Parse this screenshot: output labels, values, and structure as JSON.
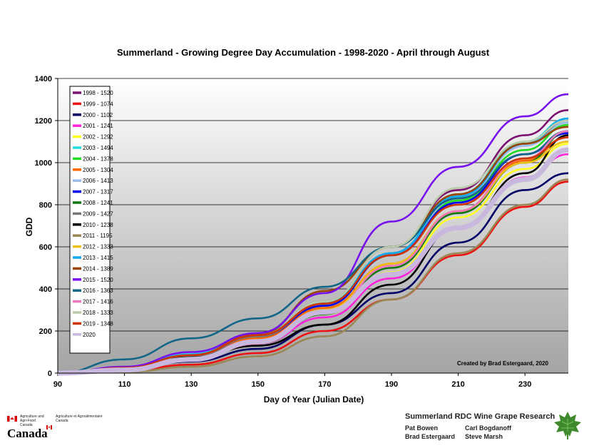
{
  "chart_data": {
    "type": "line",
    "title": "Summerland - Growing Degree Day Accumulation - 1998-2020 - April through August",
    "xlabel": "Day of Year (Julian Date)",
    "ylabel": "GDD",
    "xlim": [
      90,
      243
    ],
    "ylim": [
      0,
      1400
    ],
    "xticks": [
      90,
      110,
      130,
      150,
      170,
      190,
      210,
      230
    ],
    "yticks": [
      0,
      200,
      400,
      600,
      800,
      1000,
      1200,
      1400
    ],
    "grid": "horizontal",
    "legend_position": "top-left",
    "annotation": "Created by Brad Estergaard, 2020",
    "series": [
      {
        "name": "1998 - 1520",
        "color": "#7b1070",
        "x": [
          90,
          110,
          130,
          150,
          170,
          190,
          210,
          230,
          243
        ],
        "y": [
          0,
          22,
          85,
          170,
          340,
          600,
          870,
          1130,
          1250
        ]
      },
      {
        "name": "1999 - 1074",
        "color": "#ee1111",
        "x": [
          90,
          110,
          130,
          150,
          170,
          190,
          210,
          230,
          243
        ],
        "y": [
          0,
          10,
          40,
          95,
          200,
          350,
          560,
          790,
          910
        ]
      },
      {
        "name": "2000 - 1102",
        "color": "#000066",
        "x": [
          90,
          110,
          130,
          150,
          170,
          190,
          210,
          230,
          243
        ],
        "y": [
          0,
          18,
          55,
          115,
          230,
          380,
          620,
          870,
          950
        ]
      },
      {
        "name": "2001 - 1241",
        "color": "#ff22dd",
        "x": [
          90,
          110,
          130,
          150,
          170,
          190,
          210,
          230,
          243
        ],
        "y": [
          0,
          15,
          60,
          140,
          265,
          450,
          690,
          930,
          1040
        ]
      },
      {
        "name": "2002 - 1292",
        "color": "#ffff22",
        "x": [
          90,
          110,
          130,
          150,
          170,
          190,
          210,
          230,
          243
        ],
        "y": [
          0,
          20,
          70,
          150,
          280,
          480,
          740,
          970,
          1090
        ]
      },
      {
        "name": "2003 - 1494",
        "color": "#22dddd",
        "x": [
          90,
          110,
          130,
          150,
          170,
          190,
          210,
          230,
          243
        ],
        "y": [
          0,
          25,
          90,
          185,
          330,
          570,
          850,
          1100,
          1210
        ]
      },
      {
        "name": "2004 - 1378",
        "color": "#22dd22",
        "x": [
          90,
          110,
          130,
          150,
          170,
          190,
          210,
          230,
          243
        ],
        "y": [
          0,
          22,
          80,
          170,
          320,
          560,
          820,
          1060,
          1180
        ]
      },
      {
        "name": "2005 - 1304",
        "color": "#ff6600",
        "x": [
          90,
          110,
          130,
          150,
          170,
          190,
          210,
          230,
          243
        ],
        "y": [
          0,
          25,
          85,
          165,
          310,
          520,
          770,
          1010,
          1120
        ]
      },
      {
        "name": "2006 - 1413",
        "color": "#99bbee",
        "x": [
          90,
          110,
          130,
          150,
          170,
          190,
          210,
          230,
          243
        ],
        "y": [
          0,
          24,
          88,
          180,
          330,
          560,
          830,
          1080,
          1190
        ]
      },
      {
        "name": "2007 - 1317",
        "color": "#0000ee",
        "x": [
          90,
          110,
          130,
          150,
          170,
          190,
          210,
          230,
          243
        ],
        "y": [
          0,
          22,
          80,
          175,
          320,
          560,
          810,
          1040,
          1140
        ]
      },
      {
        "name": "2008 - 1241",
        "color": "#117711",
        "x": [
          90,
          110,
          130,
          150,
          170,
          190,
          210,
          230,
          243
        ],
        "y": [
          0,
          15,
          60,
          140,
          280,
          500,
          760,
          1000,
          1150
        ]
      },
      {
        "name": "2009 - 1427",
        "color": "#777777",
        "x": [
          90,
          110,
          130,
          150,
          170,
          190,
          210,
          230,
          243
        ],
        "y": [
          0,
          20,
          80,
          175,
          330,
          570,
          840,
          1090,
          1200
        ]
      },
      {
        "name": "2010 - 1238",
        "color": "#000000",
        "x": [
          90,
          110,
          130,
          150,
          170,
          190,
          210,
          230,
          243
        ],
        "y": [
          0,
          28,
          75,
          130,
          230,
          420,
          690,
          950,
          1130
        ]
      },
      {
        "name": "2011 - 1195",
        "color": "#998855",
        "x": [
          90,
          110,
          130,
          150,
          170,
          190,
          210,
          230,
          243
        ],
        "y": [
          0,
          5,
          30,
          80,
          175,
          350,
          570,
          800,
          920
        ]
      },
      {
        "name": "2012 - 1333",
        "color": "#f0c010",
        "x": [
          90,
          110,
          130,
          150,
          170,
          190,
          210,
          230,
          243
        ],
        "y": [
          0,
          18,
          70,
          155,
          300,
          520,
          770,
          1000,
          1100
        ]
      },
      {
        "name": "2013 - 1415",
        "color": "#11aaee",
        "x": [
          90,
          110,
          130,
          150,
          170,
          190,
          210,
          230,
          243
        ],
        "y": [
          0,
          25,
          88,
          180,
          340,
          570,
          840,
          1090,
          1210
        ]
      },
      {
        "name": "2014 - 1389",
        "color": "#994400",
        "x": [
          90,
          110,
          130,
          150,
          170,
          190,
          210,
          230,
          243
        ],
        "y": [
          0,
          22,
          85,
          185,
          390,
          600,
          850,
          1090,
          1170
        ]
      },
      {
        "name": "2015 - 1520",
        "color": "#7711ee",
        "x": [
          90,
          110,
          130,
          150,
          170,
          190,
          210,
          230,
          243
        ],
        "y": [
          0,
          30,
          100,
          190,
          380,
          720,
          980,
          1220,
          1325
        ]
      },
      {
        "name": "2016 - 1363",
        "color": "#116688",
        "x": [
          90,
          110,
          130,
          150,
          170,
          190,
          210,
          230,
          243
        ],
        "y": [
          0,
          65,
          165,
          260,
          410,
          600,
          830,
          1040,
          1150
        ]
      },
      {
        "name": "2017 - 1416",
        "color": "#ee77bb",
        "x": [
          90,
          110,
          130,
          150,
          170,
          190,
          210,
          230,
          243
        ],
        "y": [
          0,
          15,
          60,
          140,
          290,
          510,
          770,
          1020,
          1150
        ]
      },
      {
        "name": "2018 - 1333",
        "color": "#bbccaa",
        "x": [
          90,
          110,
          130,
          150,
          170,
          190,
          210,
          230,
          243
        ],
        "y": [
          0,
          20,
          85,
          180,
          340,
          600,
          880,
          1100,
          1200
        ]
      },
      {
        "name": "2019 - 1348",
        "color": "#cc3300",
        "x": [
          90,
          110,
          130,
          150,
          170,
          190,
          210,
          230,
          243
        ],
        "y": [
          0,
          25,
          85,
          180,
          330,
          560,
          800,
          1020,
          1120
        ]
      },
      {
        "name": "2020",
        "color": "#c8b8dd",
        "x": [
          90,
          110,
          130,
          150,
          170,
          190,
          210,
          230,
          243
        ],
        "y": [
          0,
          15,
          65,
          150,
          290,
          470,
          690,
          920,
          1060
        ]
      }
    ]
  },
  "footer": {
    "agency_en": "Agriculture and Agri-Food Canada",
    "agency_fr": "Agriculture et Agroalimentaire Canada",
    "canada_wordmark": "Canada",
    "research_title": "Summerland RDC Wine Grape Research",
    "names": [
      "Pat Bowen",
      "Carl Bogdanoff",
      "Brad Estergaard",
      "Steve Marsh"
    ],
    "logo_icon": "grape-leaf-icon",
    "flag_icon": "canada-flag-icon"
  }
}
